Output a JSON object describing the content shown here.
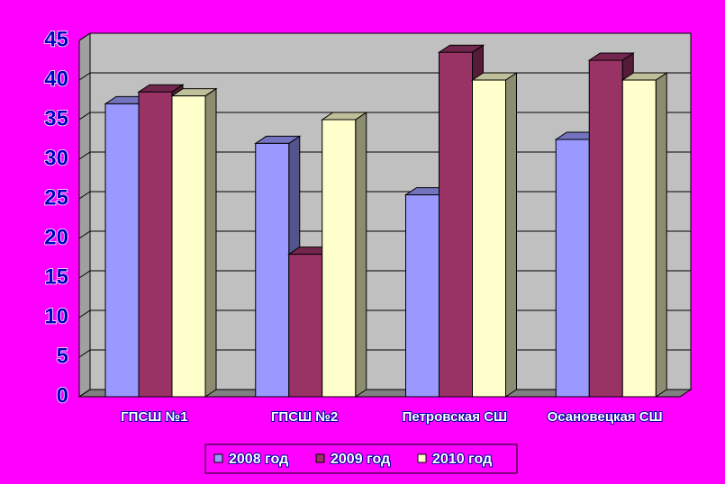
{
  "chart_data": {
    "type": "bar3d",
    "categories": [
      "ГПСШ №1",
      "ГПСШ №2",
      "Петровская СШ",
      "Осановецкая СШ"
    ],
    "series": [
      {
        "name": "2008 год",
        "color": "#9999ff",
        "values": [
          37,
          32,
          25.5,
          32.5
        ]
      },
      {
        "name": "2009 год",
        "color": "#993366",
        "values": [
          38.5,
          18,
          43.5,
          42.5
        ]
      },
      {
        "name": "2010 год",
        "color": "#ffffcc",
        "values": [
          38,
          35,
          40,
          40
        ]
      }
    ],
    "ylim": [
      0,
      45
    ],
    "yticks": [
      0,
      5,
      10,
      15,
      20,
      25,
      30,
      35,
      40,
      45
    ],
    "grid": true,
    "legend": "bottom"
  }
}
